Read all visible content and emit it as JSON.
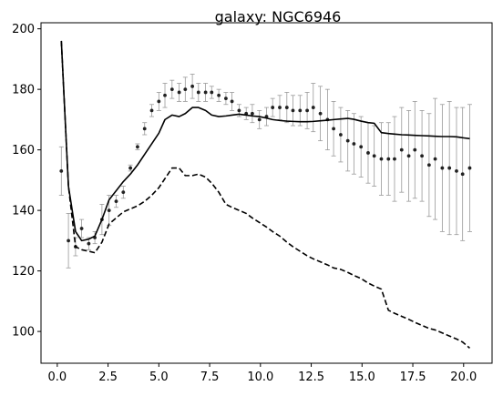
{
  "chart_data": {
    "type": "line",
    "title": "galaxy: NGC6946",
    "xlabel": "",
    "ylabel": "",
    "xlim": [
      -0.8,
      21.4
    ],
    "ylim": [
      89.5,
      202
    ],
    "xticks": [
      0.0,
      2.5,
      5.0,
      7.5,
      10.0,
      12.5,
      15.0,
      17.5,
      20.0
    ],
    "xtick_labels": [
      "0.0",
      "2.5",
      "5.0",
      "7.5",
      "10.0",
      "12.5",
      "15.0",
      "17.5",
      "20.0"
    ],
    "yticks": [
      100,
      120,
      140,
      160,
      180,
      200
    ],
    "ytick_labels": [
      "100",
      "120",
      "140",
      "160",
      "180",
      "200"
    ],
    "grid": false,
    "series": [
      {
        "style": "errorbar-points",
        "color": "#222222",
        "errcolor": "#999999",
        "x": [
          0.2,
          0.55,
          0.9,
          1.2,
          1.55,
          1.85,
          2.2,
          2.55,
          2.9,
          3.25,
          3.6,
          3.95,
          4.3,
          4.65,
          5.0,
          5.3,
          5.65,
          6.0,
          6.3,
          6.65,
          6.95,
          7.3,
          7.6,
          7.95,
          8.3,
          8.6,
          8.95,
          9.3,
          9.6,
          9.95,
          10.3,
          10.6,
          10.95,
          11.3,
          11.6,
          11.95,
          12.3,
          12.6,
          12.95,
          13.3,
          13.6,
          13.95,
          14.3,
          14.6,
          14.95,
          15.3,
          15.6,
          15.95,
          16.3,
          16.6,
          16.95,
          17.3,
          17.6,
          17.95,
          18.3,
          18.6,
          18.95,
          19.3,
          19.65,
          19.95,
          20.3
        ],
        "y": [
          153,
          130,
          128,
          134,
          129,
          131,
          137,
          140,
          143,
          146,
          154,
          161,
          167,
          173,
          176,
          178,
          180,
          179,
          180,
          181,
          179,
          179,
          179,
          178,
          177,
          176,
          173,
          172,
          172,
          170,
          171,
          174,
          174,
          174,
          173,
          173,
          173,
          174,
          172,
          170,
          167,
          165,
          163,
          162,
          161,
          159,
          158,
          157,
          157,
          157,
          160,
          158,
          160,
          158,
          155,
          157,
          154,
          154,
          153,
          152,
          154
        ],
        "err": [
          8,
          9,
          3,
          3,
          2,
          2,
          5,
          5,
          2,
          2,
          1,
          1,
          2,
          2,
          3,
          4,
          3,
          3,
          4,
          4,
          3,
          3,
          2,
          2,
          2,
          3,
          2,
          2,
          3,
          3,
          3,
          3,
          4,
          5,
          5,
          5,
          6,
          8,
          9,
          10,
          9,
          9,
          10,
          10,
          10,
          10,
          10,
          12,
          12,
          14,
          14,
          15,
          16,
          15,
          17,
          20,
          21,
          22,
          21,
          22,
          21
        ]
      },
      {
        "style": "solid",
        "color": "#000000",
        "x": [
          0.2,
          0.55,
          0.9,
          1.2,
          1.55,
          1.85,
          2.2,
          2.55,
          2.9,
          3.25,
          3.6,
          3.95,
          4.3,
          4.65,
          5.0,
          5.3,
          5.65,
          6.0,
          6.3,
          6.65,
          6.95,
          7.3,
          7.6,
          7.95,
          8.3,
          8.6,
          8.95,
          9.3,
          9.6,
          9.95,
          10.3,
          10.6,
          10.95,
          11.3,
          11.6,
          11.95,
          12.3,
          12.6,
          12.95,
          13.3,
          13.6,
          13.95,
          14.3,
          14.6,
          14.95,
          15.3,
          15.6,
          15.95,
          16.3,
          16.6,
          16.95,
          17.3,
          17.6,
          17.95,
          18.3,
          18.6,
          18.95,
          19.3,
          19.65,
          19.95,
          20.3
        ],
        "y": [
          196,
          148,
          133,
          130,
          130.5,
          131.5,
          137,
          143.5,
          146.5,
          149.5,
          152,
          155,
          158.5,
          162,
          165.5,
          170,
          171.5,
          171,
          172,
          174,
          174,
          173,
          171.5,
          171,
          171.2,
          171.5,
          171.8,
          171.5,
          171.2,
          171,
          170.5,
          170,
          169.7,
          169.5,
          169.4,
          169.3,
          169.3,
          169.4,
          169.6,
          169.8,
          170,
          170.2,
          170.4,
          170.1,
          169.5,
          169,
          168.8,
          165.7,
          165.4,
          165.2,
          165,
          164.9,
          164.8,
          164.7,
          164.6,
          164.5,
          164.4,
          164.4,
          164.3,
          164,
          163.7
        ]
      },
      {
        "style": "dashed",
        "color": "#000000",
        "x": [
          0.2,
          0.55,
          0.9,
          1.2,
          1.55,
          1.85,
          2.2,
          2.55,
          2.9,
          3.25,
          3.6,
          3.95,
          4.3,
          4.65,
          5.0,
          5.3,
          5.65,
          6.0,
          6.3,
          6.65,
          6.95,
          7.3,
          7.6,
          7.95,
          8.3,
          8.6,
          8.95,
          9.3,
          9.6,
          9.95,
          10.3,
          10.6,
          10.95,
          11.3,
          11.6,
          11.95,
          12.3,
          12.6,
          12.95,
          13.3,
          13.6,
          13.95,
          14.3,
          14.6,
          14.95,
          15.3,
          15.6,
          15.95,
          16.3,
          16.6,
          16.95,
          17.3,
          17.6,
          17.95,
          18.3,
          18.6,
          18.95,
          19.3,
          19.65,
          19.95,
          20.3
        ],
        "y": [
          196,
          148,
          128,
          127,
          126.5,
          126,
          129.5,
          135.5,
          137.5,
          139.5,
          140.5,
          141.5,
          143,
          145,
          147.5,
          150.5,
          154,
          154,
          151.5,
          151.5,
          152,
          151,
          149,
          146,
          142,
          141,
          140,
          139,
          137.5,
          136,
          134.5,
          133,
          131.5,
          129.5,
          128,
          126.5,
          125,
          124,
          123,
          122,
          121,
          120.5,
          119.5,
          118.5,
          117.5,
          116,
          115,
          114,
          107,
          106,
          105,
          104,
          103,
          102,
          101,
          100.5,
          99.5,
          98.5,
          97.5,
          96.5,
          94.5
        ]
      }
    ]
  }
}
